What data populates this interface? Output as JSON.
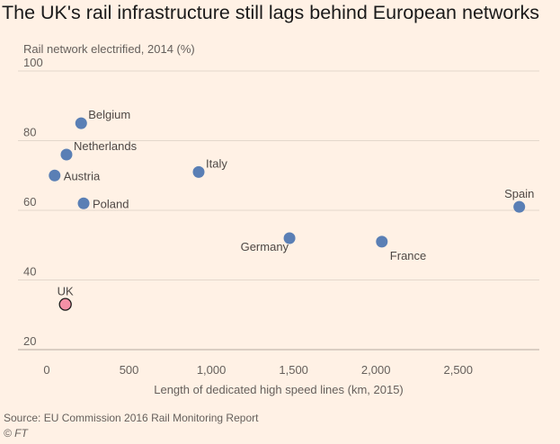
{
  "header": {
    "title": "The UK's rail infrastructure still lags behind European networks",
    "subtitle": "Rail network electrified, 2014 (%)"
  },
  "footer": {
    "source": "Source: EU Commission 2016 Rail Monitoring Report",
    "credit": "© FT"
  },
  "colors": {
    "background": "#fff1e5",
    "point": "#5a7fb5",
    "highlight": "#f490a6",
    "highlight_stroke": "#1a1a1a",
    "grid": "#e3d7cc"
  },
  "chart_data": {
    "type": "scatter",
    "title": "The UK's rail infrastructure still lags behind European networks",
    "xlabel": "Length of dedicated high speed lines (km, 2015)",
    "ylabel": "Rail network electrified, 2014 (%)",
    "xlim": [
      0,
      2900
    ],
    "ylim": [
      20,
      100
    ],
    "xticks": [
      0,
      500,
      1000,
      1500,
      2000,
      2500
    ],
    "xtick_labels": [
      "0",
      "500",
      "1,000",
      "1,500",
      "2,000",
      "2,500"
    ],
    "yticks": [
      20,
      40,
      60,
      80,
      100
    ],
    "grid": "horizontal",
    "points": [
      {
        "label": "Belgium",
        "x": 209,
        "y": 85,
        "label_pos": "above-right"
      },
      {
        "label": "Netherlands",
        "x": 120,
        "y": 76,
        "label_pos": "above-right"
      },
      {
        "label": "Austria",
        "x": 48,
        "y": 70,
        "label_pos": "right"
      },
      {
        "label": "Poland",
        "x": 224,
        "y": 62,
        "label_pos": "right"
      },
      {
        "label": "Italy",
        "x": 923,
        "y": 71,
        "label_pos": "above-right"
      },
      {
        "label": "Germany",
        "x": 1475,
        "y": 52,
        "label_pos": "below-left"
      },
      {
        "label": "France",
        "x": 2036,
        "y": 51,
        "label_pos": "below-right"
      },
      {
        "label": "Spain",
        "x": 2871,
        "y": 61,
        "label_pos": "above"
      },
      {
        "label": "UK",
        "x": 113,
        "y": 33,
        "label_pos": "above",
        "highlight": true
      }
    ]
  }
}
